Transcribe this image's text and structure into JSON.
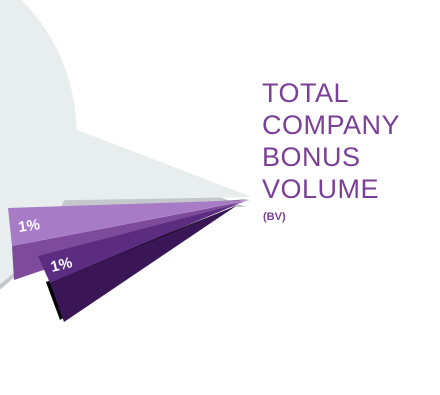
{
  "chart_data": {
    "type": "pie",
    "style": "exploded-3d",
    "slices": [
      {
        "label": "TOTAL COMPANY BONUS VOLUME",
        "sublabel": "(BV)",
        "color": "#e8eeee",
        "side_color": "#c4c8cc"
      },
      {
        "label": "1%",
        "color": "#a87bc6",
        "side_color": "#7e4a9c"
      },
      {
        "label": "1%",
        "color": "#5c2c80",
        "side_color": "#3a1656"
      }
    ],
    "label_color": "#7b3f98",
    "slice_label_color": "#ffffff",
    "main_label_lines": [
      "TOTAL",
      "COMPANY",
      "BONUS",
      "VOLUME"
    ]
  }
}
